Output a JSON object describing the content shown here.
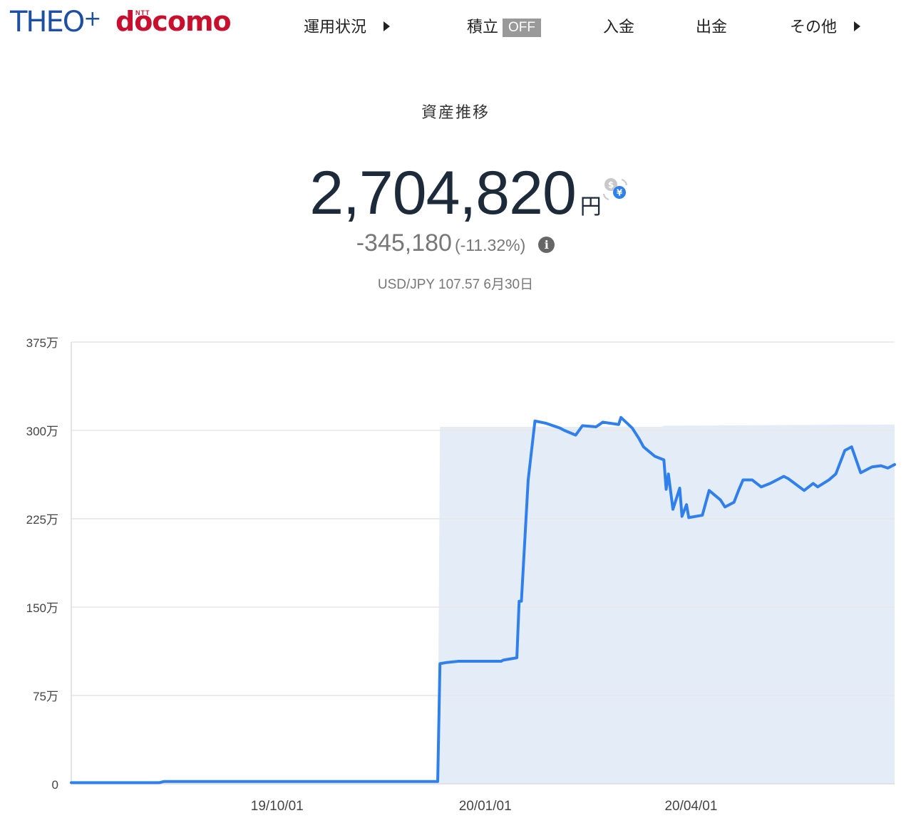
{
  "header": {
    "logo_theo": "THEO",
    "logo_plus": "+",
    "logo_ntt": "NTT",
    "logo_docomo": "docomo",
    "nav": [
      {
        "label": "運用状況",
        "has_arrow": true
      },
      {
        "label": "積立",
        "badge": "OFF"
      },
      {
        "label": "入金"
      },
      {
        "label": "出金"
      },
      {
        "label": "その他",
        "has_arrow": true
      }
    ]
  },
  "summary": {
    "title": "資産推移",
    "total": "2,704,820",
    "unit": "円",
    "change": "-345,180",
    "change_pct": "(-11.32%)",
    "fx_rate": "USD/JPY 107.57 6月30日",
    "fx_icon": "currency-exchange-icon",
    "info_icon": "info-icon"
  },
  "chart_data": {
    "type": "line",
    "ylabel": "",
    "xlabel": "",
    "y_ticks": [
      0,
      75,
      150,
      225,
      300,
      375
    ],
    "y_tick_labels": [
      "0",
      "75万",
      "150万",
      "225万",
      "300万",
      "375万"
    ],
    "y_unit": "万円",
    "ylim": [
      0,
      375
    ],
    "x_range": [
      "2019-07-02",
      "2020-06-30"
    ],
    "x_ticks": [
      "2019-10-01",
      "2020-01-01",
      "2020-04-01"
    ],
    "x_tick_labels": [
      "19/10/01",
      "20/01/01",
      "20/04/01"
    ],
    "grid": true,
    "colors": {
      "line": "#2f80ed",
      "area": "#e4ecf8",
      "grid": "#e6e6e6"
    },
    "series": [
      {
        "role": "valuation",
        "points": [
          [
            "2019-07-02",
            1
          ],
          [
            "2019-08-10",
            1
          ],
          [
            "2019-08-12",
            2
          ],
          [
            "2019-12-11",
            2
          ],
          [
            "2019-12-12",
            102
          ],
          [
            "2019-12-15",
            103
          ],
          [
            "2019-12-20",
            104
          ],
          [
            "2020-01-08",
            104
          ],
          [
            "2020-01-09",
            105
          ],
          [
            "2020-01-15",
            107
          ],
          [
            "2020-01-16",
            155
          ],
          [
            "2020-01-17",
            155
          ],
          [
            "2020-01-20",
            258
          ],
          [
            "2020-01-23",
            308
          ],
          [
            "2020-01-28",
            306
          ],
          [
            "2020-02-03",
            302
          ],
          [
            "2020-02-05",
            300
          ],
          [
            "2020-02-10",
            296
          ],
          [
            "2020-02-13",
            304
          ],
          [
            "2020-02-19",
            303
          ],
          [
            "2020-02-22",
            307
          ],
          [
            "2020-02-29",
            305
          ],
          [
            "2020-03-01",
            311
          ],
          [
            "2020-03-06",
            302
          ],
          [
            "2020-03-09",
            293
          ],
          [
            "2020-03-11",
            286
          ],
          [
            "2020-03-16",
            278
          ],
          [
            "2020-03-20",
            275
          ],
          [
            "2020-03-21",
            250
          ],
          [
            "2020-03-22",
            263
          ],
          [
            "2020-03-24",
            233
          ],
          [
            "2020-03-27",
            251
          ],
          [
            "2020-03-28",
            227
          ],
          [
            "2020-03-30",
            237
          ],
          [
            "2020-03-31",
            226
          ],
          [
            "2020-04-06",
            228
          ],
          [
            "2020-04-09",
            249
          ],
          [
            "2020-04-14",
            241
          ],
          [
            "2020-04-16",
            235
          ],
          [
            "2020-04-20",
            239
          ],
          [
            "2020-04-22",
            249
          ],
          [
            "2020-04-24",
            258
          ],
          [
            "2020-04-28",
            258
          ],
          [
            "2020-05-02",
            252
          ],
          [
            "2020-05-06",
            255
          ],
          [
            "2020-05-12",
            261
          ],
          [
            "2020-05-14",
            259
          ],
          [
            "2020-05-21",
            249
          ],
          [
            "2020-05-25",
            255
          ],
          [
            "2020-05-27",
            252
          ],
          [
            "2020-06-01",
            258
          ],
          [
            "2020-06-04",
            263
          ],
          [
            "2020-06-08",
            283
          ],
          [
            "2020-06-11",
            286
          ],
          [
            "2020-06-13",
            275
          ],
          [
            "2020-06-15",
            264
          ],
          [
            "2020-06-20",
            269
          ],
          [
            "2020-06-24",
            270
          ],
          [
            "2020-06-27",
            268
          ],
          [
            "2020-06-30",
            271
          ]
        ]
      },
      {
        "role": "deposits",
        "points": [
          [
            "2019-07-02",
            0
          ],
          [
            "2019-12-11",
            0
          ],
          [
            "2019-12-12",
            303
          ],
          [
            "2020-03-19",
            303
          ],
          [
            "2020-03-20",
            304
          ],
          [
            "2020-06-30",
            305
          ]
        ]
      }
    ]
  }
}
